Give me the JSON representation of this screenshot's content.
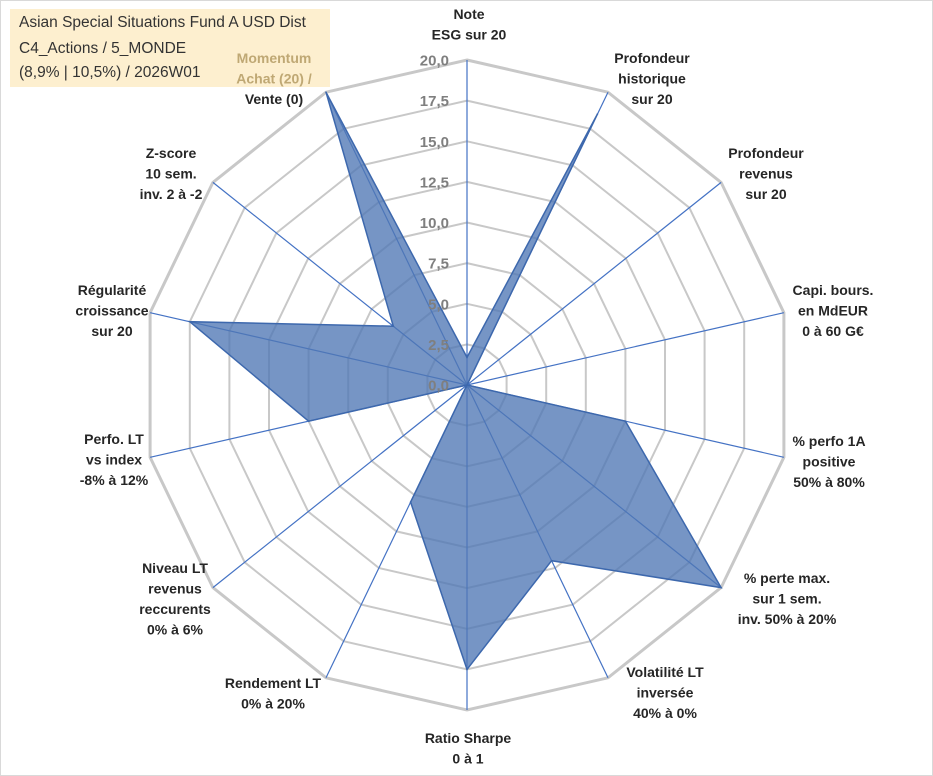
{
  "info": {
    "fund_name": "Asian Special Situations Fund A USD Dist",
    "category": "C4_Actions / 5_MONDE",
    "stats": "(8,9% | 10,5%) / 2026W01"
  },
  "colors": {
    "series_fill": "#4f77b5",
    "series_stroke": "#3d68ad",
    "grid": "#c8c8c8",
    "spoke": "#4472c4",
    "info_bg": "#fdefcf"
  },
  "chart_data": {
    "type": "radar",
    "title": "",
    "rmin": 0,
    "rmax": 20,
    "ticks": [
      "0,0",
      "2,5",
      "5,0",
      "7,5",
      "10,0",
      "12,5",
      "15,0",
      "17,5",
      "20,0"
    ],
    "axes": [
      {
        "lines": [
          "Note",
          "ESG sur 20"
        ]
      },
      {
        "lines": [
          "Profondeur",
          "historique",
          "sur 20"
        ]
      },
      {
        "lines": [
          "Profondeur",
          "revenus",
          "sur 20"
        ]
      },
      {
        "lines": [
          "Capi. bours.",
          "en MdEUR",
          "0 à 60 G€"
        ]
      },
      {
        "lines": [
          "% perfo 1A",
          "positive",
          "50% à 80%"
        ]
      },
      {
        "lines": [
          "% perte max.",
          "sur 1 sem.",
          "inv. 50% à 20%"
        ]
      },
      {
        "lines": [
          "Volatilité LT",
          "inversée",
          "40% à 0%"
        ]
      },
      {
        "lines": [
          "Ratio Sharpe",
          "0 à 1"
        ]
      },
      {
        "lines": [
          "Rendement LT",
          "0% à 20%"
        ]
      },
      {
        "lines": [
          "Niveau LT",
          "revenus",
          "reccurents",
          "0% à 6%"
        ]
      },
      {
        "lines": [
          "Perfo. LT",
          "vs index",
          "-8% à 12%"
        ]
      },
      {
        "lines": [
          "Régularité",
          "croissance",
          "sur 20"
        ]
      },
      {
        "lines": [
          "Z-score",
          "10 sem.",
          "inv. 2 à -2"
        ]
      },
      {
        "lines": [
          "Momentum",
          "Achat (20) /",
          "Vente (0)"
        ]
      }
    ],
    "series": [
      {
        "name": "Asian Special Situations Fund A USD Dist",
        "values": [
          1.7,
          18.5,
          0,
          0,
          10,
          20,
          12,
          17.5,
          8,
          0,
          10,
          17.5,
          5.8,
          20
        ]
      }
    ]
  }
}
